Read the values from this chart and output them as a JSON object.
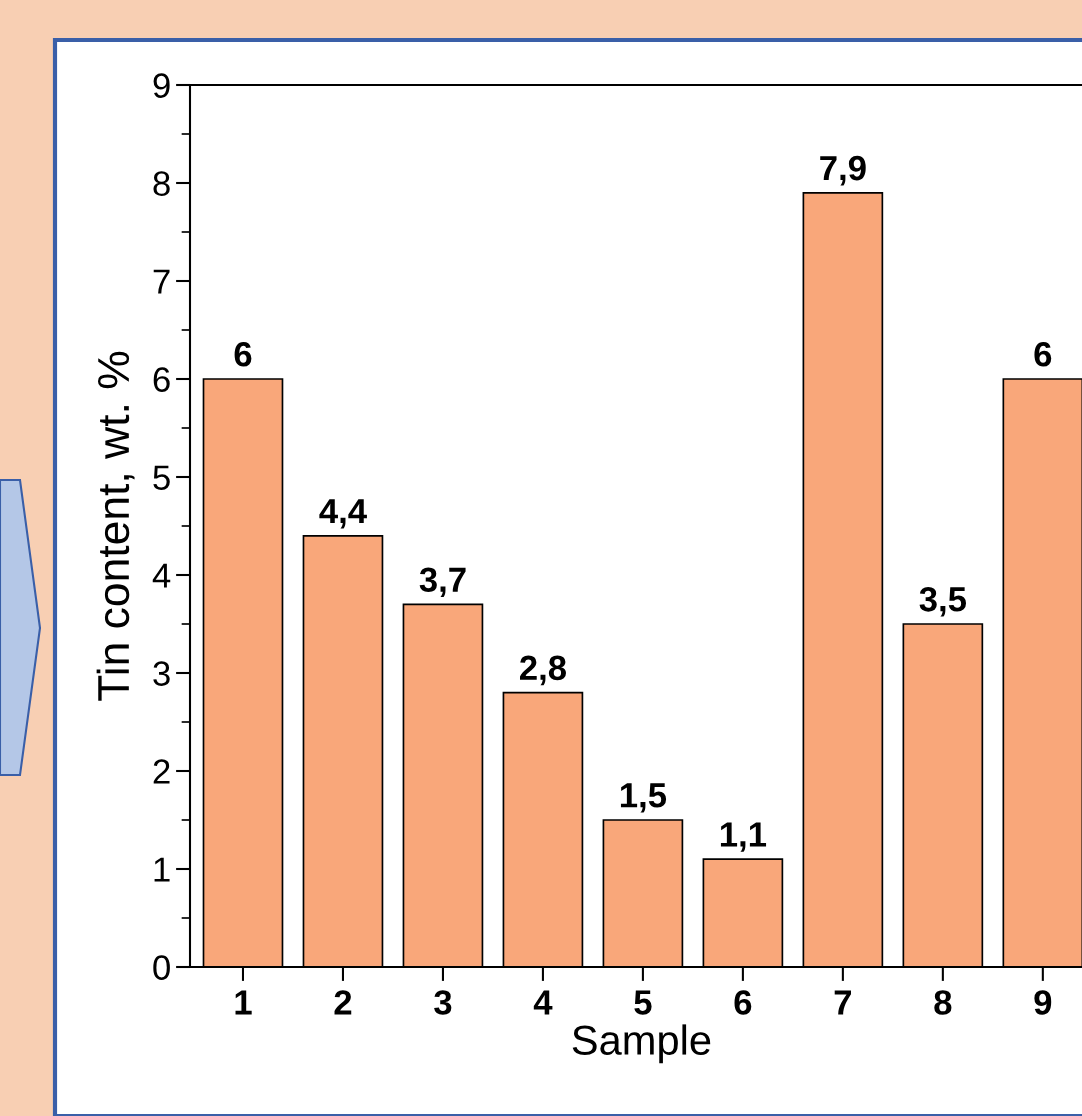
{
  "chart_data": {
    "type": "bar",
    "xlabel": "Sample",
    "ylabel": "Tin content, wt. %",
    "categories": [
      "1",
      "2",
      "3",
      "4",
      "5",
      "6",
      "7",
      "8",
      "9"
    ],
    "values": [
      6,
      4.4,
      3.7,
      2.8,
      1.5,
      1.1,
      7.9,
      3.5,
      6
    ],
    "value_labels": [
      "6",
      "4,4",
      "3,7",
      "2,8",
      "1,5",
      "1,1",
      "7,9",
      "3,5",
      "6"
    ],
    "color": "#f9a77a",
    "ylim": [
      0,
      9
    ],
    "yticks": [
      0,
      1,
      2,
      3,
      4,
      5,
      6,
      7,
      8,
      9
    ],
    "grid": false
  }
}
